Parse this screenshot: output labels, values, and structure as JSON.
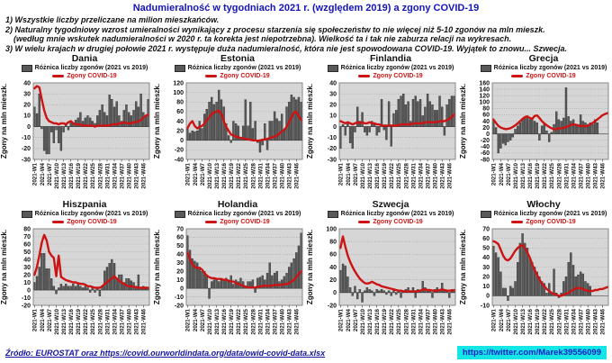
{
  "header": {
    "title": "Nadumieralność w tygodniach 2021 r. (względem 2019) a zgony COVID-19",
    "notes": [
      "1) Wszystkie liczby przeliczane na milion mieszkańców.",
      "2) Naturalny tygodniowy wzrost umieralności wynikający z procesu starzenia się społeczeństw to nie więcej niż 5-10 zgonów na mln mieszk.",
      "(według mnie wskutek nadumieralności w 2020 r. ta korekta jest niepotrzebna). Wielkość ta i tak nie zaburza relacji na wykresach.",
      "3) W wielu krajach w drugiej połowie 2021 r. występuje duża nadumieralność, która nie jest spowodowana COVID-19. Wyjątek to znowu... Szwecja."
    ]
  },
  "legend": {
    "bars_label": "Różnica liczby zgonów (2021 vs 2019)",
    "line_label": "Zgony COVID-19"
  },
  "ylabel": "Zgony na mln mieszk.",
  "xticklabels": [
    "2021-W1",
    "2021-W4",
    "2021-W7",
    "2021-W10",
    "2021-W13",
    "2021-W16",
    "2021-W19",
    "2021-W22",
    "2021-W25",
    "2021-W28",
    "2021-W31",
    "2021-W34",
    "2021-W37",
    "2021-W40",
    "2021-W43",
    "2021-W46"
  ],
  "footer": {
    "source": "Źródło: EUROSTAT oraz https://covid.ourworldindata.org/data/owid-covid-data.xlsx",
    "twitter": "https://twitter.com/Marek39556099"
  },
  "colors": {
    "title": "#1414b8",
    "bars": "#595959",
    "bar_stroke": "#1a1a1a",
    "line": "#cc1414",
    "plot_bg": "#d6d6d6",
    "grid": "#9e9e9e",
    "plot_border": "#7f7f7f",
    "zero_line": "#666666",
    "twitter_bg": "#14e6e6",
    "twitter_text": "#1520c8",
    "source_text": "#1414a0"
  },
  "chart_data": [
    {
      "type": "bar",
      "title": "Dania",
      "ylim": [
        -30,
        40
      ],
      "ystep": 10,
      "bars": [
        18,
        12,
        30,
        -2,
        -22,
        -25,
        -25,
        -5,
        -15,
        -3,
        -15,
        -22,
        -5,
        3,
        -3,
        5,
        3,
        6,
        8,
        13,
        5,
        8,
        10,
        8,
        5,
        3,
        10,
        15,
        20,
        13,
        10,
        29,
        25,
        18,
        23,
        10,
        5,
        15,
        20,
        13,
        10,
        15,
        23,
        18,
        30,
        13,
        10,
        25
      ],
      "covid_line": [
        35,
        37,
        36,
        25,
        15,
        8,
        5,
        4,
        3,
        3,
        2,
        3,
        3,
        2,
        4,
        5,
        3,
        2,
        2,
        2,
        1,
        1,
        1,
        1,
        1,
        0,
        1,
        1,
        1,
        1,
        1,
        1,
        2,
        2,
        2,
        3,
        3,
        4,
        3,
        3,
        3,
        4,
        4,
        5,
        6,
        8,
        10,
        11
      ]
    },
    {
      "type": "bar",
      "title": "Estonia",
      "ylim": [
        -40,
        120
      ],
      "ystep": 20,
      "bars": [
        25,
        15,
        20,
        18,
        20,
        40,
        25,
        55,
        65,
        80,
        90,
        75,
        80,
        105,
        85,
        70,
        35,
        10,
        -5,
        40,
        35,
        30,
        5,
        30,
        85,
        30,
        80,
        25,
        40,
        -5,
        -25,
        -10,
        35,
        -20,
        40,
        40,
        60,
        45,
        40,
        55,
        20,
        70,
        80,
        95,
        90,
        85,
        90,
        80
      ],
      "covid_line": [
        25,
        35,
        40,
        30,
        25,
        28,
        30,
        35,
        42,
        48,
        55,
        58,
        60,
        62,
        55,
        40,
        28,
        20,
        12,
        10,
        8,
        6,
        5,
        4,
        3,
        2,
        1,
        0,
        0,
        -1,
        0,
        1,
        2,
        3,
        5,
        6,
        8,
        10,
        14,
        18,
        22,
        28,
        38,
        48,
        58,
        60,
        50,
        42
      ]
    },
    {
      "type": "bar",
      "title": "Finlandia",
      "ylim": [
        -30,
        40
      ],
      "ystep": 10,
      "bars": [
        -20,
        2,
        -8,
        3,
        -15,
        -20,
        -5,
        18,
        5,
        13,
        -5,
        -8,
        -5,
        5,
        3,
        -8,
        -5,
        25,
        -3,
        -12,
        23,
        -18,
        12,
        15,
        25,
        28,
        30,
        20,
        23,
        5,
        25,
        28,
        23,
        25,
        10,
        18,
        30,
        23,
        20,
        15,
        15,
        28,
        18,
        -8,
        20,
        25,
        28,
        28
      ],
      "covid_line": [
        5,
        4,
        3,
        4,
        3,
        2,
        3,
        4,
        3,
        4,
        3,
        3,
        4,
        3,
        3,
        2,
        2,
        1,
        1,
        1,
        1,
        1,
        1,
        1,
        1,
        2,
        2,
        2,
        2,
        2,
        3,
        3,
        3,
        3,
        3,
        4,
        4,
        4,
        4,
        4,
        4,
        5,
        5,
        5,
        6,
        7,
        9,
        11
      ]
    },
    {
      "type": "bar",
      "title": "Grecja",
      "ylim": [
        -80,
        160
      ],
      "ystep": 20,
      "bars": [
        40,
        20,
        -60,
        -45,
        -30,
        -35,
        -25,
        -20,
        -10,
        15,
        25,
        35,
        45,
        50,
        55,
        45,
        50,
        40,
        35,
        -20,
        25,
        30,
        10,
        -25,
        5,
        30,
        70,
        45,
        40,
        50,
        145,
        55,
        40,
        45,
        25,
        30,
        60,
        40,
        35,
        30,
        35,
        30,
        45,
        35,
        null,
        null,
        null,
        null
      ],
      "covid_line": [
        45,
        35,
        25,
        20,
        17,
        15,
        16,
        18,
        22,
        27,
        33,
        40,
        47,
        53,
        55,
        50,
        47,
        56,
        58,
        50,
        40,
        33,
        27,
        22,
        18,
        15,
        15,
        17,
        18,
        19,
        21,
        25,
        28,
        30,
        29,
        26,
        25,
        25,
        24,
        26,
        30,
        34,
        40,
        46,
        52,
        58,
        62,
        65
      ]
    },
    {
      "type": "bar",
      "title": "Hiszpania",
      "ylim": [
        -20,
        80
      ],
      "ystep": 10,
      "bars": [
        10,
        18,
        30,
        48,
        48,
        28,
        28,
        15,
        5,
        -5,
        3,
        8,
        5,
        8,
        5,
        5,
        8,
        5,
        8,
        5,
        3,
        5,
        3,
        -3,
        3,
        -3,
        3,
        -8,
        5,
        25,
        30,
        35,
        40,
        35,
        15,
        20,
        20,
        10,
        15,
        15,
        12,
        10,
        5,
        20,
        3,
        5,
        3,
        3
      ],
      "covid_line": [
        20,
        30,
        45,
        62,
        72,
        65,
        50,
        45,
        42,
        18,
        45,
        17,
        15,
        13,
        12,
        11,
        10,
        10,
        9,
        8,
        8,
        7,
        5,
        5,
        4,
        3,
        3,
        3,
        5,
        8,
        10,
        13,
        15,
        18,
        15,
        12,
        10,
        8,
        6,
        5,
        5,
        4,
        4,
        3,
        3,
        3,
        3,
        3
      ]
    },
    {
      "type": "bar",
      "title": "Holandia",
      "ylim": [
        -20,
        70
      ],
      "ystep": 10,
      "bars": [
        62,
        45,
        35,
        32,
        30,
        25,
        20,
        20,
        15,
        -12,
        8,
        10,
        10,
        8,
        10,
        10,
        12,
        8,
        15,
        5,
        10,
        8,
        12,
        8,
        3,
        8,
        8,
        10,
        -5,
        12,
        13,
        15,
        10,
        18,
        30,
        15,
        18,
        20,
        8,
        10,
        14,
        18,
        25,
        30,
        35,
        42,
        50,
        65
      ],
      "covid_line": [
        42,
        35,
        28,
        25,
        24,
        24,
        22,
        18,
        15,
        13,
        12,
        12,
        11,
        11,
        11,
        10,
        10,
        9,
        8,
        8,
        6,
        5,
        4,
        3,
        2,
        1,
        1,
        1,
        1,
        2,
        2,
        3,
        3,
        3,
        3,
        3,
        4,
        4,
        4,
        4,
        5,
        5,
        6,
        8,
        10,
        13,
        17,
        20
      ]
    },
    {
      "type": "bar",
      "title": "Szwecja",
      "ylim": [
        -20,
        100
      ],
      "ystep": 20,
      "bars": [
        35,
        45,
        42,
        25,
        8,
        -5,
        10,
        -10,
        5,
        -15,
        3,
        8,
        5,
        3,
        -5,
        5,
        3,
        5,
        3,
        -3,
        3,
        -5,
        3,
        -3,
        3,
        -8,
        3,
        5,
        8,
        3,
        8,
        -8,
        5,
        3,
        18,
        8,
        5,
        3,
        -8,
        5,
        8,
        3,
        15,
        5,
        3,
        -8,
        5,
        3
      ],
      "covid_line": [
        70,
        88,
        72,
        58,
        48,
        40,
        33,
        27,
        22,
        18,
        15,
        14,
        15,
        17,
        15,
        13,
        12,
        10,
        9,
        8,
        7,
        6,
        5,
        4,
        3,
        3,
        2,
        2,
        2,
        2,
        2,
        2,
        2,
        3,
        5,
        5,
        4,
        4,
        3,
        3,
        3,
        4,
        5,
        4,
        3,
        3,
        3,
        4
      ]
    },
    {
      "type": "bar",
      "title": "Włochy",
      "ylim": [
        -10,
        70
      ],
      "ystep": 10,
      "bars": [
        52,
        45,
        40,
        25,
        8,
        8,
        -5,
        10,
        8,
        15,
        35,
        55,
        65,
        55,
        50,
        40,
        35,
        30,
        25,
        20,
        15,
        13,
        3,
        13,
        3,
        28,
        3,
        -2,
        3,
        15,
        20,
        35,
        45,
        32,
        20,
        22,
        25,
        23,
        15,
        13,
        10,
        null,
        null,
        null,
        null,
        null,
        null,
        null
      ],
      "covid_line": [
        57,
        56,
        54,
        48,
        42,
        38,
        37,
        39,
        43,
        47,
        50,
        52,
        53,
        50,
        45,
        40,
        33,
        27,
        22,
        17,
        13,
        10,
        7,
        5,
        3,
        2,
        1,
        0,
        0,
        1,
        2,
        3,
        5,
        6,
        8,
        8,
        8,
        7,
        6,
        5,
        5,
        5,
        6,
        6,
        7,
        7,
        8,
        9
      ]
    }
  ]
}
